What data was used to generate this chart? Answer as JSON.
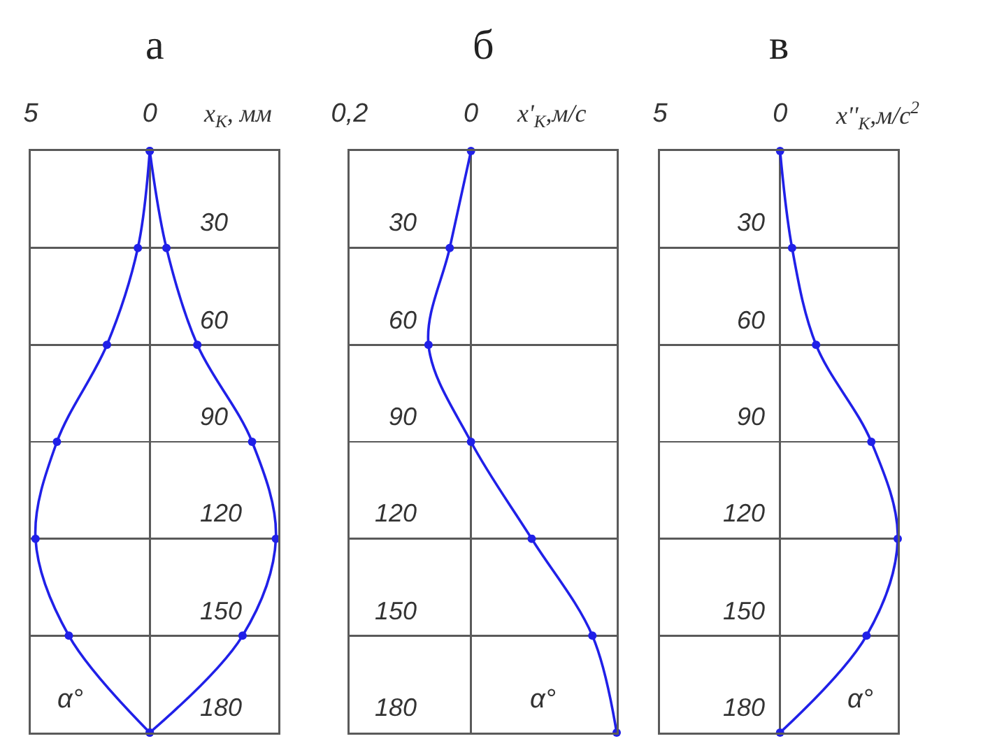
{
  "chart_data": [
    {
      "type": "line",
      "title": "а",
      "xlabel": "x$_{К}$, мм",
      "ylabel": "α°",
      "xlim": [
        5,
        -5.4
      ],
      "xticks": [
        {
          "value": 5,
          "label": "5"
        },
        {
          "value": 0,
          "label": "0"
        }
      ],
      "ylim": [
        180,
        0
      ],
      "yticks": [
        30,
        60,
        90,
        120,
        150,
        180
      ],
      "grid": true,
      "marker": "circle",
      "series": [
        {
          "color": "#2020e8",
          "x": [
            0,
            0.5,
            1.8,
            3.9,
            4.8,
            3.4,
            0,
            null,
            0,
            -0.7,
            -2.0,
            -4.3,
            -5.3,
            -3.9,
            0
          ],
          "values": [
            0,
            30,
            60,
            90,
            120,
            150,
            180,
            null,
            0,
            30,
            60,
            90,
            120,
            150,
            180
          ]
        }
      ]
    },
    {
      "type": "line",
      "title": "б",
      "xlabel": "x'$_{К}$,м/с",
      "ylabel": "α°",
      "xlim": [
        0.2,
        -0.24
      ],
      "xticks": [
        {
          "value": 0.2,
          "label": "0,2"
        },
        {
          "value": 0,
          "label": "0"
        }
      ],
      "ylim": [
        180,
        0
      ],
      "yticks": [
        30,
        60,
        90,
        120,
        150,
        180
      ],
      "grid": true,
      "marker": "circle",
      "series": [
        {
          "color": "#2020e8",
          "x": [
            0,
            0.035,
            0.07,
            0,
            -0.1,
            -0.2,
            -0.24
          ],
          "values": [
            0,
            30,
            60,
            90,
            120,
            150,
            180
          ]
        }
      ]
    },
    {
      "type": "line",
      "title": "в",
      "xlabel": "x''$_{К}$,м/с$^{2}$",
      "ylabel": "α°",
      "xlim": [
        5,
        -4.9
      ],
      "xticks": [
        {
          "value": 5,
          "label": "5"
        },
        {
          "value": 0,
          "label": "0"
        }
      ],
      "ylim": [
        180,
        0
      ],
      "yticks": [
        30,
        60,
        90,
        120,
        150,
        180
      ],
      "grid": true,
      "marker": "circle",
      "series": [
        {
          "color": "#2020e8",
          "x": [
            0,
            -0.5,
            -1.5,
            -3.8,
            -4.9,
            -3.6,
            0
          ],
          "values": [
            0,
            30,
            60,
            90,
            120,
            150,
            180
          ]
        }
      ]
    }
  ]
}
